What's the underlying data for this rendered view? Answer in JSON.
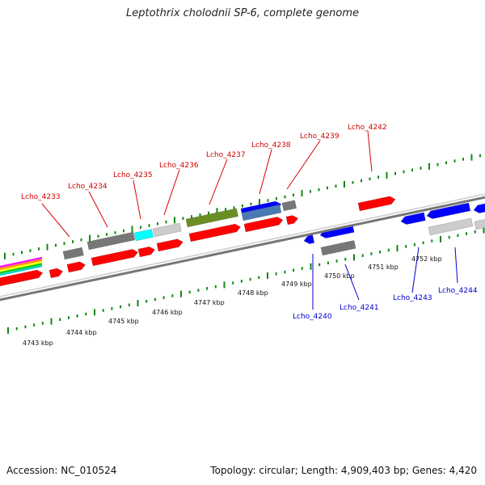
{
  "header": {
    "title": "Leptothrix cholodnii SP-6, complete genome"
  },
  "footer": {
    "accession": "Accession: NC_010524",
    "summary": "Topology: circular; Length: 4,909,403 bp; Genes: 4,420"
  },
  "colors": {
    "plus_strand_label": "#d40000",
    "minus_strand_label": "#0000cc",
    "red_feature": "#ff0000",
    "blue_feature": "#0000ff",
    "grey_feature": "#777777",
    "light_grey_feature": "#cccccc",
    "cyan_feature": "#00ffff",
    "olive_feature": "#6b8e23",
    "steel_feature": "#4a7ab5",
    "backbone": "#888888",
    "tick": "#118811"
  },
  "kbp_labels": [
    "4743 kbp",
    "4744 kbp",
    "4745 kbp",
    "4746 kbp",
    "4747 kbp",
    "4748 kbp",
    "4749 kbp",
    "4750 kbp",
    "4751 kbp",
    "4752 kbp"
  ],
  "genes_plus": [
    "Lcho_4233",
    "Lcho_4234",
    "Lcho_4235",
    "Lcho_4236",
    "Lcho_4237",
    "Lcho_4238",
    "Lcho_4239",
    "Lcho_4242"
  ],
  "genes_minus": [
    "Lcho_4240",
    "Lcho_4241",
    "Lcho_4243",
    "Lcho_4244"
  ]
}
